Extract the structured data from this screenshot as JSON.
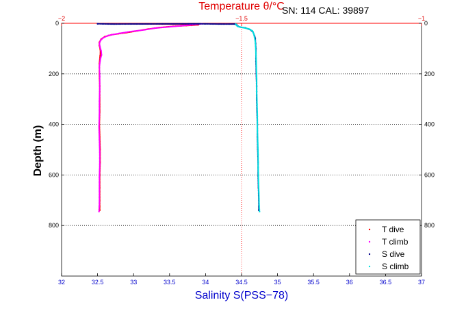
{
  "chart_data": {
    "type": "scatter",
    "title": "Temperature θ/°C",
    "annotation": "SN: 114  CAL: 39897",
    "xlabel": "Salinity S(PSS−78)",
    "ylabel": "Depth (m)",
    "xlim_salinity": [
      32,
      37
    ],
    "xlim_temperature": [
      -2,
      -1
    ],
    "ylim_depth": [
      1000,
      0
    ],
    "x_ticks_salinity": [
      "32",
      "32.5",
      "33",
      "33.5",
      "34",
      "34.5",
      "35",
      "35.5",
      "36",
      "36.5",
      "37"
    ],
    "x_ticks_temperature": [
      "−2",
      "−1.5",
      "−1"
    ],
    "y_ticks": [
      "0",
      "200",
      "400",
      "600",
      "800"
    ],
    "y_ticks_right": [
      "0",
      "200",
      "400",
      "600",
      "800"
    ],
    "grid": "horizontal dotted at 200 m intervals",
    "legend_position": "bottom-right",
    "colors": {
      "t_dive": "#ff0000",
      "t_climb": "#ff00ff",
      "s_dive": "#00008b",
      "s_climb": "#00e0e0",
      "title": "#e00000",
      "salinity_axis": "#0000cc",
      "temperature_axis": "#e00000"
    },
    "series": [
      {
        "name": "T dive",
        "axis": "temperature",
        "points": [
          [
            -1.84,
            2
          ],
          [
            -1.72,
            3
          ],
          [
            -1.63,
            4
          ],
          [
            -1.62,
            6
          ],
          [
            -1.64,
            8
          ],
          [
            -1.69,
            12
          ],
          [
            -1.73,
            17
          ],
          [
            -1.76,
            23
          ],
          [
            -1.79,
            30
          ],
          [
            -1.82,
            37
          ],
          [
            -1.86,
            45
          ],
          [
            -1.88,
            53
          ],
          [
            -1.89,
            63
          ],
          [
            -1.895,
            75
          ],
          [
            -1.895,
            88
          ],
          [
            -1.893,
            100
          ],
          [
            -1.892,
            115
          ],
          [
            -1.893,
            130
          ],
          [
            -1.895,
            160
          ],
          [
            -1.895,
            200
          ],
          [
            -1.894,
            250
          ],
          [
            -1.894,
            300
          ],
          [
            -1.894,
            350
          ],
          [
            -1.895,
            400
          ],
          [
            -1.894,
            450
          ],
          [
            -1.893,
            500
          ],
          [
            -1.893,
            550
          ],
          [
            -1.894,
            600
          ],
          [
            -1.894,
            650
          ],
          [
            -1.894,
            700
          ],
          [
            -1.894,
            740
          ]
        ]
      },
      {
        "name": "T climb",
        "axis": "temperature",
        "points": [
          [
            -1.61,
            2
          ],
          [
            -1.63,
            5
          ],
          [
            -1.66,
            9
          ],
          [
            -1.7,
            14
          ],
          [
            -1.74,
            19
          ],
          [
            -1.77,
            26
          ],
          [
            -1.81,
            33
          ],
          [
            -1.84,
            40
          ],
          [
            -1.87,
            48
          ],
          [
            -1.885,
            58
          ],
          [
            -1.892,
            68
          ],
          [
            -1.895,
            80
          ],
          [
            -1.893,
            95
          ],
          [
            -1.89,
            110
          ],
          [
            -1.889,
            125
          ],
          [
            -1.892,
            140
          ],
          [
            -1.895,
            170
          ],
          [
            -1.894,
            210
          ],
          [
            -1.894,
            260
          ],
          [
            -1.895,
            310
          ],
          [
            -1.895,
            360
          ],
          [
            -1.896,
            410
          ],
          [
            -1.895,
            460
          ],
          [
            -1.894,
            510
          ],
          [
            -1.894,
            560
          ],
          [
            -1.895,
            610
          ],
          [
            -1.895,
            660
          ],
          [
            -1.895,
            710
          ],
          [
            -1.896,
            745
          ]
        ]
      },
      {
        "name": "S dive",
        "axis": "salinity",
        "points": [
          [
            32.5,
            2
          ],
          [
            32.7,
            3
          ],
          [
            33.9,
            2
          ],
          [
            34.2,
            3
          ],
          [
            34.4,
            3
          ],
          [
            34.43,
            5
          ],
          [
            34.44,
            10
          ],
          [
            34.48,
            15
          ],
          [
            34.55,
            18
          ],
          [
            34.62,
            25
          ],
          [
            34.66,
            35
          ],
          [
            34.68,
            50
          ],
          [
            34.69,
            60
          ],
          [
            34.695,
            80
          ],
          [
            34.7,
            100
          ],
          [
            34.7,
            150
          ],
          [
            34.705,
            200
          ],
          [
            34.71,
            250
          ],
          [
            34.71,
            300
          ],
          [
            34.715,
            350
          ],
          [
            34.72,
            400
          ],
          [
            34.72,
            450
          ],
          [
            34.725,
            500
          ],
          [
            34.73,
            550
          ],
          [
            34.73,
            600
          ],
          [
            34.735,
            650
          ],
          [
            34.74,
            700
          ],
          [
            34.74,
            740
          ]
        ]
      },
      {
        "name": "S climb",
        "axis": "salinity",
        "points": [
          [
            34.42,
            3
          ],
          [
            34.43,
            8
          ],
          [
            34.45,
            13
          ],
          [
            34.52,
            17
          ],
          [
            34.6,
            22
          ],
          [
            34.65,
            30
          ],
          [
            34.67,
            42
          ],
          [
            34.68,
            55
          ],
          [
            34.69,
            70
          ],
          [
            34.695,
            90
          ],
          [
            34.7,
            120
          ],
          [
            34.705,
            170
          ],
          [
            34.71,
            220
          ],
          [
            34.71,
            270
          ],
          [
            34.715,
            320
          ],
          [
            34.72,
            370
          ],
          [
            34.72,
            420
          ],
          [
            34.725,
            470
          ],
          [
            34.73,
            520
          ],
          [
            34.73,
            570
          ],
          [
            34.735,
            620
          ],
          [
            34.74,
            670
          ],
          [
            34.745,
            720
          ],
          [
            34.75,
            745
          ]
        ]
      }
    ]
  }
}
